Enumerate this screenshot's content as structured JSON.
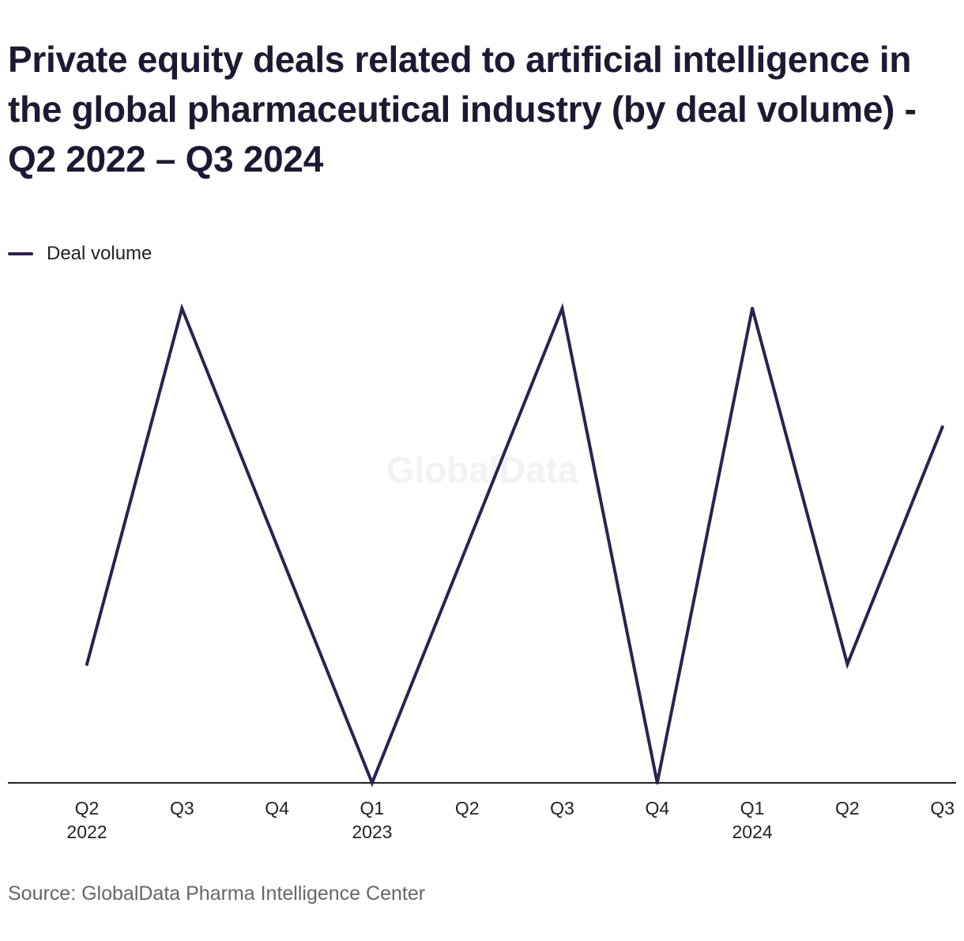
{
  "title": "Private equity deals related to artificial intelligence in the global pharmaceutical industry (by deal volume) - Q2 2022 – Q3 2024",
  "legend": {
    "label": "Deal volume"
  },
  "source": "Source: GlobalData Pharma Intelligence Center",
  "watermark": "GlobalData",
  "colors": {
    "line": "#2e2150",
    "axis": "#222222",
    "text": "#222222",
    "title": "#1c1a33"
  },
  "chart_data": {
    "type": "line",
    "title": "Private equity deals related to artificial intelligence in the global pharmaceutical industry (by deal volume) - Q2 2022 – Q3 2024",
    "categories": [
      "Q2 2022",
      "Q3 2022",
      "Q4 2022",
      "Q1 2023",
      "Q2 2023",
      "Q3 2023",
      "Q4 2023",
      "Q1 2024",
      "Q2 2024",
      "Q3 2024"
    ],
    "tick_labels": [
      [
        "Q2",
        "2022"
      ],
      [
        "Q3"
      ],
      [
        "Q4"
      ],
      [
        "Q1",
        "2023"
      ],
      [
        "Q2"
      ],
      [
        "Q3"
      ],
      [
        "Q4"
      ],
      [
        "Q1",
        "2024"
      ],
      [
        "Q2"
      ],
      [
        "Q3"
      ]
    ],
    "series": [
      {
        "name": "Deal volume",
        "values": [
          1,
          4,
          2,
          0,
          2,
          4,
          0,
          4,
          1,
          3
        ]
      }
    ],
    "ylim": [
      0,
      4
    ],
    "grid": false,
    "y_axis_labels_shown": false,
    "legend_position": "top-left"
  }
}
